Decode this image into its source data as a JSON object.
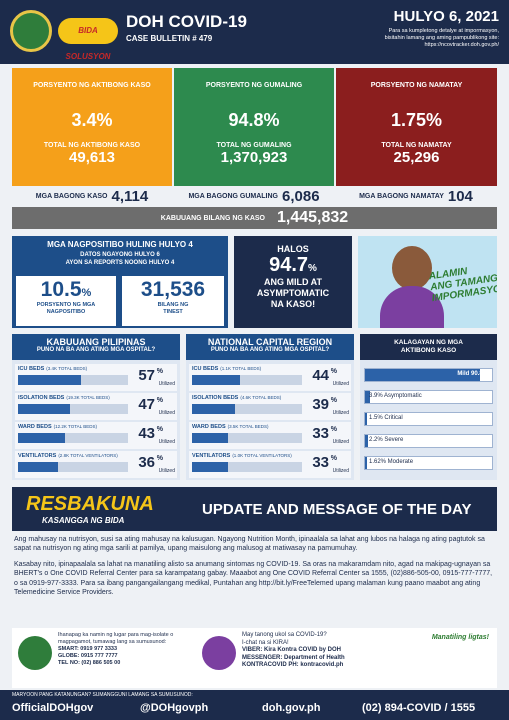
{
  "header": {
    "title": "DOH COVID-19",
    "bulletin": "CASE BULLETIN # 479",
    "date": "HULYO 6, 2021",
    "note": [
      "Para sa kumpletong detalye at impormasyon,",
      "bisitahin lamang ang aming pampublikong site:",
      "https://ncovtracker.doh.gov.ph/"
    ],
    "logo_text": "BIDA SOLUSYON"
  },
  "summary": [
    {
      "label": "PORSYENTO NG AKTIBONG KASO",
      "value": "3.4",
      "unit": "%",
      "total_label": "TOTAL NG AKTIBONG KASO",
      "total": "49,613",
      "new_label": "MGA BAGONG KASO",
      "new": "4,114"
    },
    {
      "label": "PORSYENTO NG GUMALING",
      "value": "94.8",
      "unit": "%",
      "total_label": "TOTAL NG GUMALING",
      "total": "1,370,923",
      "new_label": "MGA BAGONG GUMALING",
      "new": "6,086"
    },
    {
      "label": "PORSYENTO NG NAMATAY",
      "value": "1.75",
      "unit": "%",
      "total_label": "TOTAL NG NAMATAY",
      "total": "25,296",
      "new_label": "MGA BAGONG NAMATAY",
      "new": "104"
    }
  ],
  "total_cases": {
    "label": "KABUUANG BILANG NG KASO",
    "value": "1,445,832"
  },
  "positivity": {
    "title": "MGA NAGPOSITIBO HULING HULYO 4",
    "sub": [
      "DATOS NGAYONG HULYO 6",
      "AYON SA REPORTS NOONG HULYO 4"
    ],
    "rate": "10.5",
    "unit": "%",
    "rate_label": [
      "PORSYENTO NG MGA",
      "NAGPOSITIBO"
    ],
    "tested": "31,536",
    "tested_label": [
      "BILANG NG",
      "TINEST"
    ]
  },
  "mild": {
    "lines": [
      "HALOS"
    ],
    "value": "94.7",
    "unit": "%",
    "rest": [
      "ANG MILD AT",
      "ASYMPTOMATIC",
      "NA KASO!"
    ]
  },
  "banner": {
    "lines": [
      "ALAMIN",
      "ANG TAMANG",
      "IMPORMASYON"
    ]
  },
  "hospital": {
    "unit": "%",
    "utilized": "Utilized",
    "panels": [
      {
        "title": "KABUUANG PILIPINAS",
        "sub": "PUNO NA BA ANG ATING MGA OSPITAL?",
        "rows": [
          {
            "name": "ICU BEDS",
            "total": "(3.4K TOTAL BEDS)",
            "value": 57
          },
          {
            "name": "ISOLATION BEDS",
            "total": "(19.3K TOTAL BEDS)",
            "value": 47
          },
          {
            "name": "WARD BEDS",
            "total": "(12.2K TOTAL BEDS)",
            "value": 43
          },
          {
            "name": "VENTILATORS",
            "total": "(2.8K TOTAL VENTILATORS)",
            "value": 36
          }
        ]
      },
      {
        "title": "NATIONAL CAPITAL REGION",
        "sub": "PUNO NA BA ANG ATING MGA OSPITAL?",
        "rows": [
          {
            "name": "ICU BEDS",
            "total": "(1.1K TOTAL BEDS)",
            "value": 44
          },
          {
            "name": "ISOLATION BEDS",
            "total": "(4.6K TOTAL BEDS)",
            "value": 39
          },
          {
            "name": "WARD BEDS",
            "total": "(3.5K TOTAL BEDS)",
            "value": 33
          },
          {
            "name": "VENTILATORS",
            "total": "(1.0K TOTAL VENTILATORS)",
            "value": 33
          }
        ]
      }
    ]
  },
  "severity": {
    "title": [
      "KALAGAYAN NG MGA",
      "AKTIBONG KASO"
    ],
    "rows": [
      {
        "value": 90.8,
        "label": "Mild 90.8%"
      },
      {
        "value": 3.9,
        "label": "3.9% Asymptomatic"
      },
      {
        "value": 1.5,
        "label": "1.5% Critical"
      },
      {
        "value": 2.2,
        "label": "2.2% Severe"
      },
      {
        "value": 1.62,
        "label": "1.62% Moderate"
      }
    ]
  },
  "message": {
    "brand": "RESBAKUNA",
    "brand_sub": "KASANGGA NG BIDA",
    "title": "UPDATE AND MESSAGE OF THE DAY",
    "paragraphs": [
      "Ang mahusay na nutrisyon, susi sa ating mahusay na kalusugan. Ngayong Nutrition Month, ipinaalala sa lahat ang lubos na halaga ng ating pagtutok sa sapat na nutrisyon ng ating mga sarili at pamilya, upang maisulong ang malusog at matiwasay na pamumuhay.",
      "Kasabay nito, ipinapaalala sa lahat na manatiling alisto sa anumang sintomas ng COVID-19. Sa oras na makaramdam nito, agad na makipag-ugnayan sa BHERT's o One COVID Referral Center para sa karampatang gabay. Maaabot ang One COVID Referral Center sa 1555, (02)886-505-00, 0915-777-7777, o sa 0919-977-3333. Para sa ibang pangangailangang medikal, Puntahan ang http://bit.ly/FreeTelemed upang malaman kung paano maabot ang ating Telemedicine Service Providers."
    ]
  },
  "contacts": {
    "left_intro": [
      "Ihanapag ka namin ng lugar para mag-isolate o",
      "magpagamot, tumawag lang sa sumusunod:"
    ],
    "left": [
      "SMART: 0919 977 3333",
      "GLOBE: 0915 777 7777",
      "TEL NO: (02) 886 505 00"
    ],
    "right_intro": [
      "May tanong ukol sa COVID-19?",
      "I-chat na si KIRA!"
    ],
    "right": [
      "VIBER: Kira Kontra COVID by DOH",
      "MESSENGER: Department of Health",
      "KONTRACOVID PH: kontracovid.ph"
    ],
    "stay": "Manatiling ligtas!"
  },
  "footer": {
    "note": "MARYOON PANG KATANUNGAN? SUMANGGUNI LAMANG SA SUMUSUNOD:",
    "links": [
      "OfficialDOHgov",
      "@DOHgovph",
      "doh.gov.ph",
      "(02) 894-COVID / 1555"
    ]
  }
}
